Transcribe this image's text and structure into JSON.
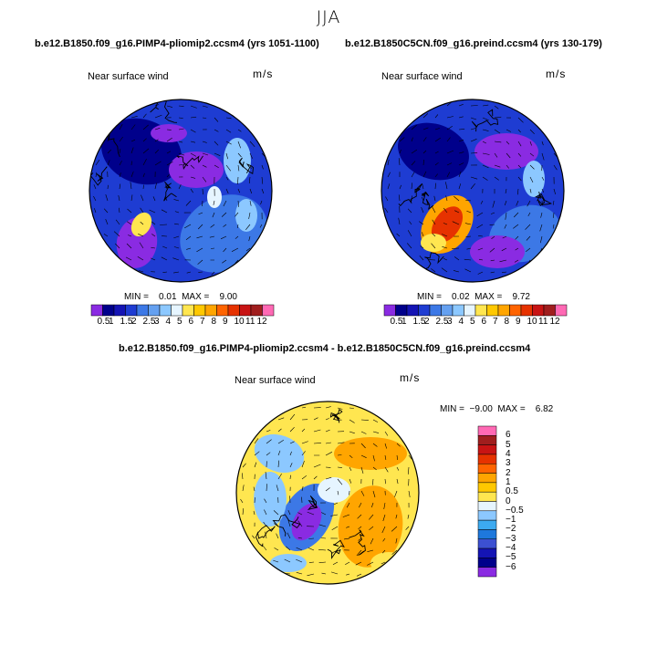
{
  "page_title": "JJA",
  "colors": {
    "purple": "#8a2be2",
    "navy": "#00008b",
    "blue": "#1e3cd2",
    "mid_blue": "#3c78e6",
    "light_blue": "#8cc8ff",
    "pale": "#e6f5ff",
    "yellow": "#ffe650",
    "orange": "#ffa500",
    "red": "#e63200",
    "dark_red": "#a01e1e",
    "pink": "#ff69b4"
  },
  "chart_data": [
    {
      "type": "polar-contour-map",
      "title": "b.e12.B1850.f09_g16.PIMP4-pliomip2.ccsm4 (yrs 1051-1100)",
      "variable": "Near surface wind",
      "units": "m/s",
      "min_max_text": "MIN =    0.01  MAX =    9.00",
      "min": 0.01,
      "max": 9.0,
      "colorbar": {
        "orientation": "horizontal",
        "levels": [
          "0.5",
          "1",
          "1.5",
          "2",
          "2.5",
          "3",
          "4",
          "5",
          "6",
          "7",
          "8",
          "9",
          "10",
          "11",
          "12"
        ],
        "colors": [
          "#8a2be2",
          "#00008b",
          "#1414b4",
          "#1e3cd2",
          "#3c78e6",
          "#64a0f0",
          "#8cc8ff",
          "#e6f5ff",
          "#ffe650",
          "#ffc800",
          "#ffa500",
          "#ff6400",
          "#e63200",
          "#c81414",
          "#a01e1e",
          "#ff69b4"
        ]
      }
    },
    {
      "type": "polar-contour-map",
      "title": "b.e12.B1850C5CN.f09_g16.preind.ccsm4 (yrs 130-179)",
      "variable": "Near surface wind",
      "units": "m/s",
      "min_max_text": "MIN =    0.02  MAX =    9.72",
      "min": 0.02,
      "max": 9.72,
      "colorbar": {
        "orientation": "horizontal",
        "levels": [
          "0.5",
          "1",
          "1.5",
          "2",
          "2.5",
          "3",
          "4",
          "5",
          "6",
          "7",
          "8",
          "9",
          "10",
          "11",
          "12"
        ],
        "colors": [
          "#8a2be2",
          "#00008b",
          "#1414b4",
          "#1e3cd2",
          "#3c78e6",
          "#64a0f0",
          "#8cc8ff",
          "#e6f5ff",
          "#ffe650",
          "#ffc800",
          "#ffa500",
          "#ff6400",
          "#e63200",
          "#c81414",
          "#a01e1e",
          "#ff69b4"
        ]
      }
    },
    {
      "type": "polar-contour-map",
      "title": "b.e12.B1850.f09_g16.PIMP4-pliomip2.ccsm4 - b.e12.B1850C5CN.f09_g16.preind.ccsm4",
      "variable": "Near surface wind",
      "units": "m/s",
      "min_max_text": "MIN =  −9.00  MAX =    6.82",
      "min": -9.0,
      "max": 6.82,
      "colorbar": {
        "orientation": "vertical",
        "levels": [
          "6",
          "5",
          "4",
          "3",
          "2",
          "1",
          "0.5",
          "0",
          "−0.5",
          "−1",
          "−2",
          "−3",
          "−4",
          "−5",
          "−6"
        ],
        "colors": [
          "#ff69b4",
          "#a01e1e",
          "#c81414",
          "#e63200",
          "#ff6400",
          "#ffa500",
          "#ffc800",
          "#ffe650",
          "#e6f5ff",
          "#8cc8ff",
          "#3caaf0",
          "#1e78dc",
          "#3c50d2",
          "#1414b4",
          "#00008b",
          "#8a2be2"
        ]
      }
    }
  ]
}
